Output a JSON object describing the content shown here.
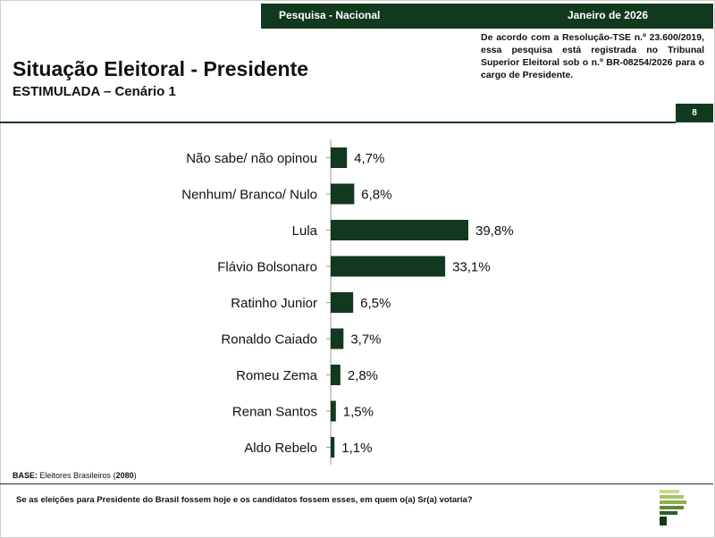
{
  "header": {
    "survey_label": "Pesquisa - Nacional",
    "date_label": "Janeiro de 2026",
    "notice": "De acordo com a Resolução-TSE n.º 23.600/2019, essa pesquisa está registrada no Tribunal Superior Eleitoral sob o n.º BR-08254/2026 para o cargo de Presidente.",
    "page_number": "8"
  },
  "title": "Situação Eleitoral - Presidente",
  "subtitle": "ESTIMULADA – Cenário 1",
  "base": {
    "label": "BASE:",
    "text": "Eleitores Brasileiros",
    "count": "2080"
  },
  "question": "Se as eleições para Presidente do Brasil fossem hoje e os candidatos fossem esses, em quem o(a) Sr(a) votaria?",
  "colors": {
    "primary": "#11391f",
    "logo_light": "#c9d98a",
    "logo_mid": "#8fb04a"
  },
  "chart_data": {
    "type": "bar",
    "orientation": "horizontal",
    "categories": [
      "Não sabe/ não opinou",
      "Nenhum/ Branco/ Nulo",
      "Lula",
      "Flávio Bolsonaro",
      "Ratinho Junior",
      "Ronaldo Caiado",
      "Romeu Zema",
      "Renan Santos",
      "Aldo Rebelo"
    ],
    "values": [
      4.7,
      6.8,
      39.8,
      33.1,
      6.5,
      3.7,
      2.8,
      1.5,
      1.1
    ],
    "value_labels": [
      "4,7%",
      "6,8%",
      "39,8%",
      "33,1%",
      "6,5%",
      "3,7%",
      "2,8%",
      "1,5%",
      "1,1%"
    ],
    "grid": false
  }
}
